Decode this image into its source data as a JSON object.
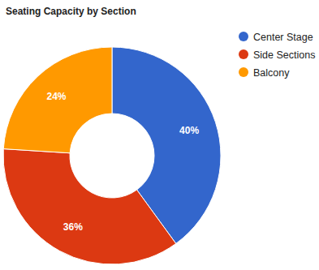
{
  "chart_data": {
    "type": "pie",
    "title": "Seating Capacity by Section",
    "categories": [
      "Center Stage",
      "Side Sections",
      "Balcony"
    ],
    "values": [
      40,
      36,
      24
    ],
    "value_labels": [
      "40%",
      "36%",
      "24%"
    ],
    "colors": [
      "#3366cc",
      "#dc3912",
      "#ff9900"
    ],
    "data_labels": true,
    "legend": "right"
  }
}
